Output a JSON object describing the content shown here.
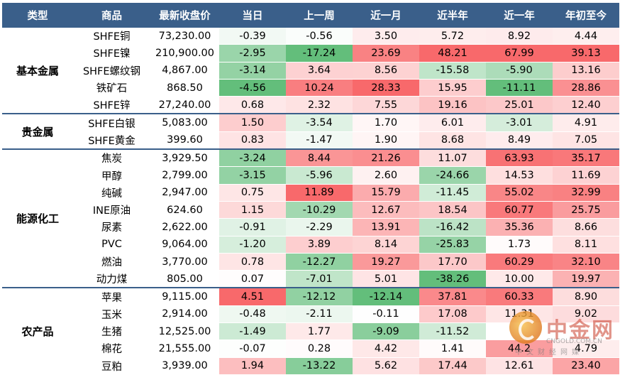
{
  "headers": [
    "类型",
    "商品",
    "最新收盘价",
    "当日",
    "上一周",
    "近一月",
    "近半年",
    "近一年",
    "年初至今"
  ],
  "groups": [
    {
      "category": "基本金属",
      "rows": [
        {
          "name": "SHFE铜",
          "price": "73,230.00",
          "v": [
            "-0.39",
            "-0.56",
            "3.50",
            "5.72",
            "8.92",
            "4.44"
          ]
        },
        {
          "name": "SHFE镍",
          "price": "210,900.00",
          "v": [
            "-2.95",
            "-17.24",
            "23.69",
            "48.21",
            "67.99",
            "39.13"
          ]
        },
        {
          "name": "SHFE螺纹钢",
          "price": "4,867.00",
          "v": [
            "-3.14",
            "3.64",
            "8.56",
            "-15.58",
            "-5.90",
            "13.16"
          ]
        },
        {
          "name": "铁矿石",
          "price": "868.50",
          "v": [
            "-4.56",
            "10.24",
            "28.33",
            "15.95",
            "-11.11",
            "28.86"
          ]
        },
        {
          "name": "SHFE锌",
          "price": "27,240.00",
          "v": [
            "0.68",
            "2.32",
            "7.55",
            "19.16",
            "25.01",
            "12.40"
          ]
        }
      ]
    },
    {
      "category": "贵金属",
      "rows": [
        {
          "name": "SHFE白银",
          "price": "5,083.00",
          "v": [
            "1.50",
            "-3.54",
            "1.70",
            "6.01",
            "-3.01",
            "4.91"
          ]
        },
        {
          "name": "SHFE黄金",
          "price": "399.60",
          "v": [
            "0.83",
            "-1.47",
            "1.90",
            "8.68",
            "8.49",
            "7.05"
          ]
        }
      ]
    },
    {
      "category": "能源化工",
      "rows": [
        {
          "name": "焦炭",
          "price": "3,929.50",
          "v": [
            "-3.24",
            "8.44",
            "21.26",
            "11.07",
            "63.93",
            "35.17"
          ]
        },
        {
          "name": "甲醇",
          "price": "2,799.00",
          "v": [
            "-3.15",
            "-5.96",
            "2.60",
            "-24.66",
            "14.53",
            "11.69"
          ]
        },
        {
          "name": "纯碱",
          "price": "2,947.00",
          "v": [
            "0.75",
            "11.89",
            "15.79",
            "-11.45",
            "55.02",
            "32.99"
          ]
        },
        {
          "name": "INE原油",
          "price": "624.60",
          "v": [
            "1.15",
            "-10.29",
            "12.67",
            "18.54",
            "60.77",
            "25.75"
          ]
        },
        {
          "name": "尿素",
          "price": "2,622.00",
          "v": [
            "-0.91",
            "-2.29",
            "13.91",
            "-16.42",
            "35.36",
            "8.66"
          ]
        },
        {
          "name": "PVC",
          "price": "9,064.00",
          "v": [
            "-1.20",
            "3.89",
            "8.14",
            "-25.83",
            "1.73",
            "8.11"
          ]
        },
        {
          "name": "燃油",
          "price": "3,770.00",
          "v": [
            "0.78",
            "-12.27",
            "19.27",
            "17.70",
            "60.29",
            "32.10"
          ]
        },
        {
          "name": "动力煤",
          "price": "805.00",
          "v": [
            "0.07",
            "-7.01",
            "5.01",
            "-38.26",
            "10.00",
            "19.97"
          ]
        }
      ]
    },
    {
      "category": "农产品",
      "rows": [
        {
          "name": "苹果",
          "price": "9,115.00",
          "v": [
            "4.51",
            "-12.12",
            "-12.14",
            "37.81",
            "60.33",
            "8.90"
          ]
        },
        {
          "name": "玉米",
          "price": "2,914.00",
          "v": [
            "-0.48",
            "-2.11",
            "-0.11",
            "17.08",
            "11.31",
            "9.02"
          ]
        },
        {
          "name": "生猪",
          "price": "12,525.00",
          "v": [
            "-1.49",
            "1.77",
            "-9.09",
            "-11.52",
            "",
            ""
          ]
        },
        {
          "name": "棉花",
          "price": "21,555.00",
          "v": [
            "-0.07",
            "0.28",
            "4.42",
            "1.41",
            "44.2",
            "4.79"
          ]
        },
        {
          "name": "豆粕",
          "price": "3,939.00",
          "v": [
            "1.94",
            "-13.22",
            "5.62",
            "17.44",
            "12.61",
            "23.40"
          ]
        }
      ]
    }
  ],
  "watermark": {
    "name": "中金网",
    "domain": "CNGOLD.COM.CN",
    "slogan": "中文财经网媒"
  },
  "colors": {
    "header_bg": "#3a5f8a",
    "header_text": "#ffffff",
    "positive": "#f8696b",
    "negative": "#63be7b",
    "neutral": "#ffffff"
  }
}
